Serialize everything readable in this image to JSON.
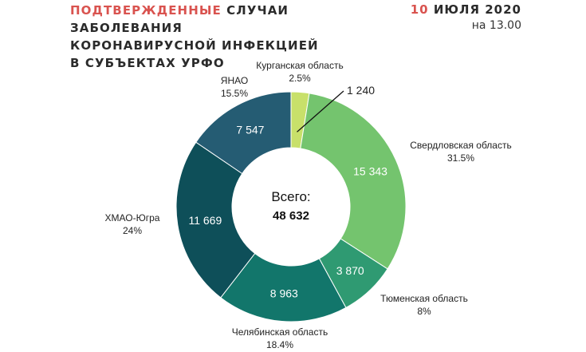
{
  "header": {
    "title_highlight": "ПОДТВЕРЖДЕННЫЕ",
    "title_line1_rest": " СЛУЧАИ",
    "title_line2": "ЗАБОЛЕВАНИЯ",
    "title_line3": "КОРОНАВИРУСНОЙ ИНФЕКЦИЕЙ",
    "title_line4": "В СУБЪЕКТАХ УРФО",
    "date_day": "10",
    "date_rest": " ИЮЛЯ 2020",
    "time": "на 13.00"
  },
  "chart_data": {
    "type": "pie",
    "donut": true,
    "center_label": "Всего:",
    "center_value": "48 632",
    "slices": [
      {
        "name": "Курганская область",
        "value": 1240,
        "value_label": "1 240",
        "percent": "2.5%",
        "color": "#c8e06a"
      },
      {
        "name": "Свердловская область",
        "value": 15343,
        "value_label": "15 343",
        "percent": "31.5%",
        "color": "#74c46e"
      },
      {
        "name": "Тюменская область",
        "value": 3870,
        "value_label": "3 870",
        "percent": "8%",
        "color": "#2f9a72"
      },
      {
        "name": "Челябинская область",
        "value": 8963,
        "value_label": "8 963",
        "percent": "18.4%",
        "color": "#12766b"
      },
      {
        "name": "ХМАО-Югра",
        "value": 11669,
        "value_label": "11 669",
        "percent": "24%",
        "color": "#0e4f59"
      },
      {
        "name": "ЯНАО",
        "value": 7547,
        "value_label": "7 547",
        "percent": "15.5%",
        "color": "#255c73"
      }
    ]
  }
}
